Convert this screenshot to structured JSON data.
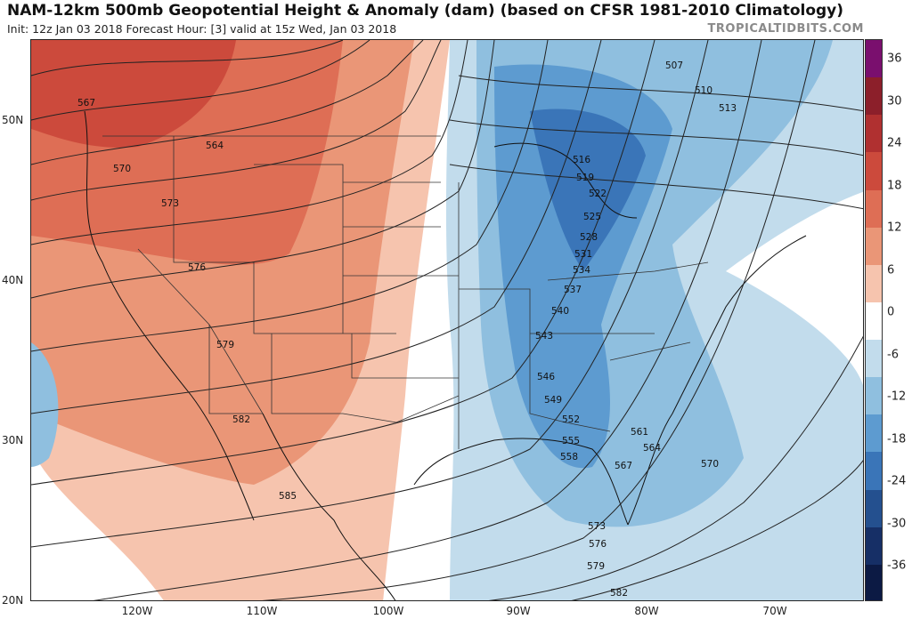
{
  "header": {
    "title": "NAM-12km 500mb Geopotential Height & Anomaly (dam) (based on CFSR 1981-2010 Climatology)",
    "subtitle": "Init: 12z Jan 03 2018   Forecast Hour: [3]   valid at 15z Wed, Jan 03 2018",
    "site": "TROPICALTIDBITS.COM"
  },
  "axes": {
    "lat_labels": [
      "50N",
      "40N",
      "30N",
      "20N"
    ],
    "lon_labels": [
      "120W",
      "110W",
      "100W",
      "90W",
      "80W",
      "70W"
    ]
  },
  "colorbar": {
    "labels": [
      "36",
      "30",
      "24",
      "18",
      "12",
      "6",
      "0",
      "-6",
      "-12",
      "-18",
      "-24",
      "-30",
      "-36"
    ],
    "colors": [
      "#7a0f6e",
      "#8c1f2a",
      "#b03030",
      "#cc4a3c",
      "#de6e55",
      "#ea9677",
      "#f6c4ae",
      "#ffffff",
      "#c2dcec",
      "#8fbfdf",
      "#5d9bd0",
      "#3a75b8",
      "#24508f",
      "#162f66",
      "#0c1a44"
    ]
  },
  "contours": {
    "labels": [
      "507",
      "510",
      "513",
      "516",
      "519",
      "522",
      "525",
      "528",
      "531",
      "534",
      "537",
      "540",
      "543",
      "546",
      "549",
      "552",
      "555",
      "558",
      "561",
      "564",
      "567",
      "570",
      "573",
      "576",
      "579",
      "582",
      "585"
    ],
    "west_labels": [
      "567",
      "570",
      "564",
      "573",
      "576",
      "579",
      "582",
      "585"
    ]
  },
  "colors": {
    "anomaly_positive": "#de6e55",
    "anomaly_negative": "#5d9bd0",
    "contour": "#222222"
  }
}
